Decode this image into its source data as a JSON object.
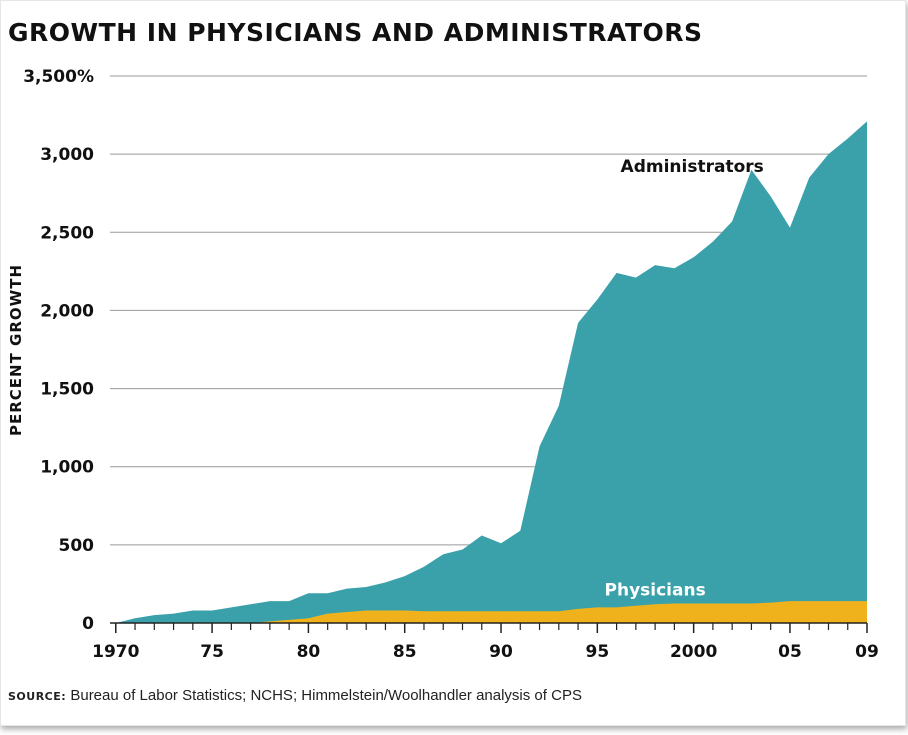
{
  "chart_data": {
    "type": "area",
    "title": "GROWTH IN PHYSICIANS AND ADMINISTRATORS",
    "ylabel": "PERCENT GROWTH",
    "xlabel": "",
    "source_label": "SOURCE:",
    "source_text": "Bureau of Labor Statistics; NCHS; Himmelstein/Woolhandler analysis of CPS",
    "x": [
      1970,
      1971,
      1972,
      1973,
      1974,
      1975,
      1976,
      1977,
      1978,
      1979,
      1980,
      1981,
      1982,
      1983,
      1984,
      1985,
      1986,
      1987,
      1988,
      1989,
      1990,
      1991,
      1992,
      1993,
      1994,
      1995,
      1996,
      1997,
      1998,
      1999,
      2000,
      2001,
      2002,
      2003,
      2004,
      2005,
      2006,
      2007,
      2008,
      2009
    ],
    "xlim": [
      1969.7,
      2009
    ],
    "x_ticks": [
      1970,
      1975,
      1980,
      1985,
      1990,
      1995,
      2000,
      2005,
      2009
    ],
    "x_tick_labels": [
      "1970",
      "75",
      "80",
      "85",
      "90",
      "95",
      "2000",
      "05",
      "09"
    ],
    "ylim": [
      0,
      3500
    ],
    "y_ticks": [
      0,
      500,
      1000,
      1500,
      2000,
      2500,
      3000,
      3500
    ],
    "y_tick_labels": [
      "0",
      "500",
      "1,000",
      "1,500",
      "2,000",
      "2,500",
      "3,000",
      "3,500%"
    ],
    "grid": true,
    "series": [
      {
        "name": "Administrators",
        "color": "#3aa1ab",
        "values": [
          0,
          30,
          50,
          60,
          80,
          80,
          100,
          120,
          140,
          140,
          190,
          190,
          220,
          230,
          260,
          300,
          360,
          440,
          470,
          560,
          510,
          590,
          1130,
          1390,
          1920,
          2070,
          2240,
          2210,
          2290,
          2270,
          2340,
          2440,
          2570,
          2900,
          2730,
          2530,
          2850,
          3000,
          3100,
          3210
        ]
      },
      {
        "name": "Physicians",
        "color": "#f0b21c",
        "values": [
          0,
          0,
          0,
          0,
          0,
          0,
          0,
          0,
          10,
          20,
          30,
          60,
          70,
          80,
          80,
          80,
          75,
          75,
          75,
          75,
          75,
          75,
          75,
          75,
          90,
          100,
          100,
          110,
          120,
          125,
          125,
          125,
          125,
          125,
          130,
          140,
          140,
          140,
          140,
          140
        ]
      }
    ],
    "annotations": [
      "Administrators",
      "Physicians"
    ]
  }
}
